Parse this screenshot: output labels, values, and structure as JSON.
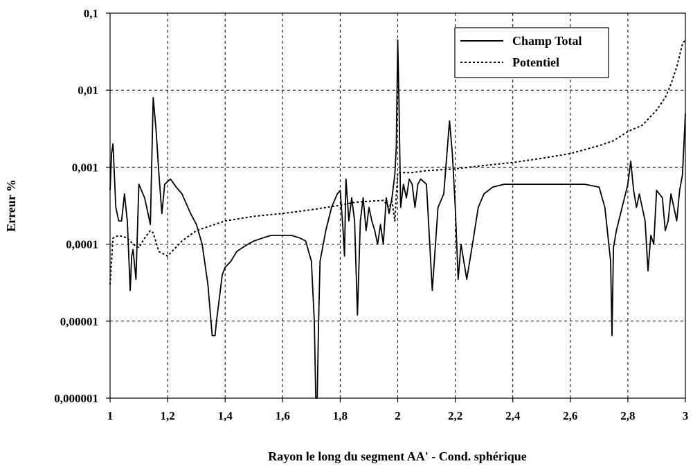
{
  "chart_data": {
    "type": "line",
    "xlabel": "Rayon le long du segment AA' - Cond. sphérique",
    "ylabel": "Erreur %",
    "xlim": [
      1,
      3
    ],
    "ylim": [
      1e-06,
      0.1
    ],
    "y_scale": "log",
    "grid": true,
    "legend_position": "top-right",
    "x_ticks": [
      "1",
      "1,2",
      "1,4",
      "1,6",
      "1,8",
      "2",
      "2,2",
      "2,4",
      "2,6",
      "2,8",
      "3"
    ],
    "y_ticks": [
      "0,000001",
      "0,00001",
      "0,0001",
      "0,001",
      "0,01",
      "0,1"
    ],
    "series": [
      {
        "name": "Champ Total",
        "style": "solid",
        "x": [
          1.0,
          1.005,
          1.01,
          1.02,
          1.03,
          1.04,
          1.05,
          1.06,
          1.07,
          1.075,
          1.08,
          1.09,
          1.1,
          1.12,
          1.14,
          1.15,
          1.16,
          1.17,
          1.18,
          1.19,
          1.21,
          1.23,
          1.25,
          1.28,
          1.3,
          1.32,
          1.34,
          1.355,
          1.365,
          1.37,
          1.38,
          1.39,
          1.4,
          1.42,
          1.44,
          1.46,
          1.48,
          1.5,
          1.53,
          1.56,
          1.6,
          1.63,
          1.66,
          1.68,
          1.7,
          1.71,
          1.715,
          1.72,
          1.725,
          1.73,
          1.75,
          1.77,
          1.79,
          1.8,
          1.81,
          1.815,
          1.82,
          1.83,
          1.84,
          1.85,
          1.86,
          1.87,
          1.88,
          1.89,
          1.9,
          1.91,
          1.92,
          1.93,
          1.94,
          1.95,
          1.96,
          1.97,
          1.98,
          1.99,
          1.995,
          2.0,
          2.005,
          2.01,
          2.02,
          2.03,
          2.04,
          2.05,
          2.06,
          2.07,
          2.08,
          2.1,
          2.12,
          2.14,
          2.16,
          2.18,
          2.19,
          2.2,
          2.21,
          2.22,
          2.24,
          2.26,
          2.28,
          2.3,
          2.33,
          2.37,
          2.4,
          2.45,
          2.5,
          2.55,
          2.6,
          2.65,
          2.7,
          2.72,
          2.74,
          2.745,
          2.75,
          2.76,
          2.78,
          2.8,
          2.81,
          2.82,
          2.83,
          2.84,
          2.86,
          2.87,
          2.88,
          2.89,
          2.9,
          2.92,
          2.93,
          2.94,
          2.95,
          2.96,
          2.97,
          2.98,
          2.99,
          3.0
        ],
        "y": [
          0.0005,
          0.0015,
          0.002,
          0.0003,
          0.0002,
          0.0002,
          0.00045,
          0.0002,
          2.5e-05,
          7e-05,
          8.5e-05,
          3.5e-05,
          0.0006,
          0.0004,
          0.00018,
          0.008,
          0.003,
          0.0008,
          0.00025,
          0.0006,
          0.0007,
          0.00055,
          0.00045,
          0.00025,
          0.00018,
          0.0001,
          3e-05,
          6.5e-06,
          6.5e-06,
          1e-05,
          2e-05,
          4e-05,
          5e-05,
          6e-05,
          8e-05,
          9e-05,
          0.0001,
          0.00011,
          0.00012,
          0.00013,
          0.00013,
          0.00013,
          0.00012,
          0.00011,
          6e-05,
          1e-05,
          1e-06,
          1e-06,
          1e-05,
          6e-05,
          0.00015,
          0.0003,
          0.00045,
          0.0005,
          0.00015,
          7e-05,
          0.0007,
          0.0002,
          0.0004,
          0.0002,
          1.2e-05,
          0.0002,
          0.0004,
          0.00015,
          0.0003,
          0.0002,
          0.00015,
          0.0001,
          0.00018,
          0.0001,
          0.0004,
          0.00025,
          0.0004,
          0.0008,
          0.0018,
          0.045,
          0.005,
          0.0003,
          0.0006,
          0.0004,
          0.0007,
          0.0006,
          0.0003,
          0.0006,
          0.0007,
          0.0006,
          2.5e-05,
          0.0003,
          0.00045,
          0.004,
          0.0015,
          0.0003,
          3.5e-05,
          0.0001,
          3.5e-05,
          0.0001,
          0.0003,
          0.00045,
          0.00055,
          0.0006,
          0.0006,
          0.0006,
          0.0006,
          0.0006,
          0.0006,
          0.0006,
          0.00055,
          0.0003,
          6e-05,
          6.5e-06,
          9e-05,
          0.00015,
          0.0003,
          0.0006,
          0.0012,
          0.0005,
          0.0003,
          0.00045,
          0.0002,
          4.5e-05,
          0.00013,
          0.0001,
          0.0005,
          0.0004,
          0.00015,
          0.0002,
          0.00045,
          0.0003,
          0.0002,
          0.0005,
          0.0008,
          0.005
        ]
      },
      {
        "name": "Potentiel",
        "style": "dotted",
        "x": [
          1.0,
          1.01,
          1.03,
          1.06,
          1.08,
          1.1,
          1.12,
          1.14,
          1.15,
          1.17,
          1.2,
          1.25,
          1.3,
          1.4,
          1.5,
          1.6,
          1.7,
          1.8,
          1.85,
          1.9,
          1.95,
          1.97,
          1.98,
          1.99,
          2.0,
          2.05,
          2.1,
          2.2,
          2.3,
          2.4,
          2.5,
          2.6,
          2.7,
          2.75,
          2.8,
          2.85,
          2.9,
          2.93,
          2.95,
          2.97,
          2.99,
          3.0
        ],
        "y": [
          3e-05,
          0.00012,
          0.00013,
          0.00012,
          0.0001,
          9e-05,
          0.00012,
          0.00015,
          0.00014,
          8e-05,
          7e-05,
          0.00011,
          0.00015,
          0.0002,
          0.00023,
          0.00025,
          0.00028,
          0.00032,
          0.00035,
          0.00036,
          0.00037,
          0.0003,
          0.00036,
          0.0002,
          0.00085,
          0.00085,
          0.0009,
          0.00095,
          0.00105,
          0.00115,
          0.0013,
          0.0015,
          0.0019,
          0.0022,
          0.0029,
          0.0035,
          0.0055,
          0.008,
          0.012,
          0.02,
          0.04,
          0.045
        ]
      }
    ]
  }
}
